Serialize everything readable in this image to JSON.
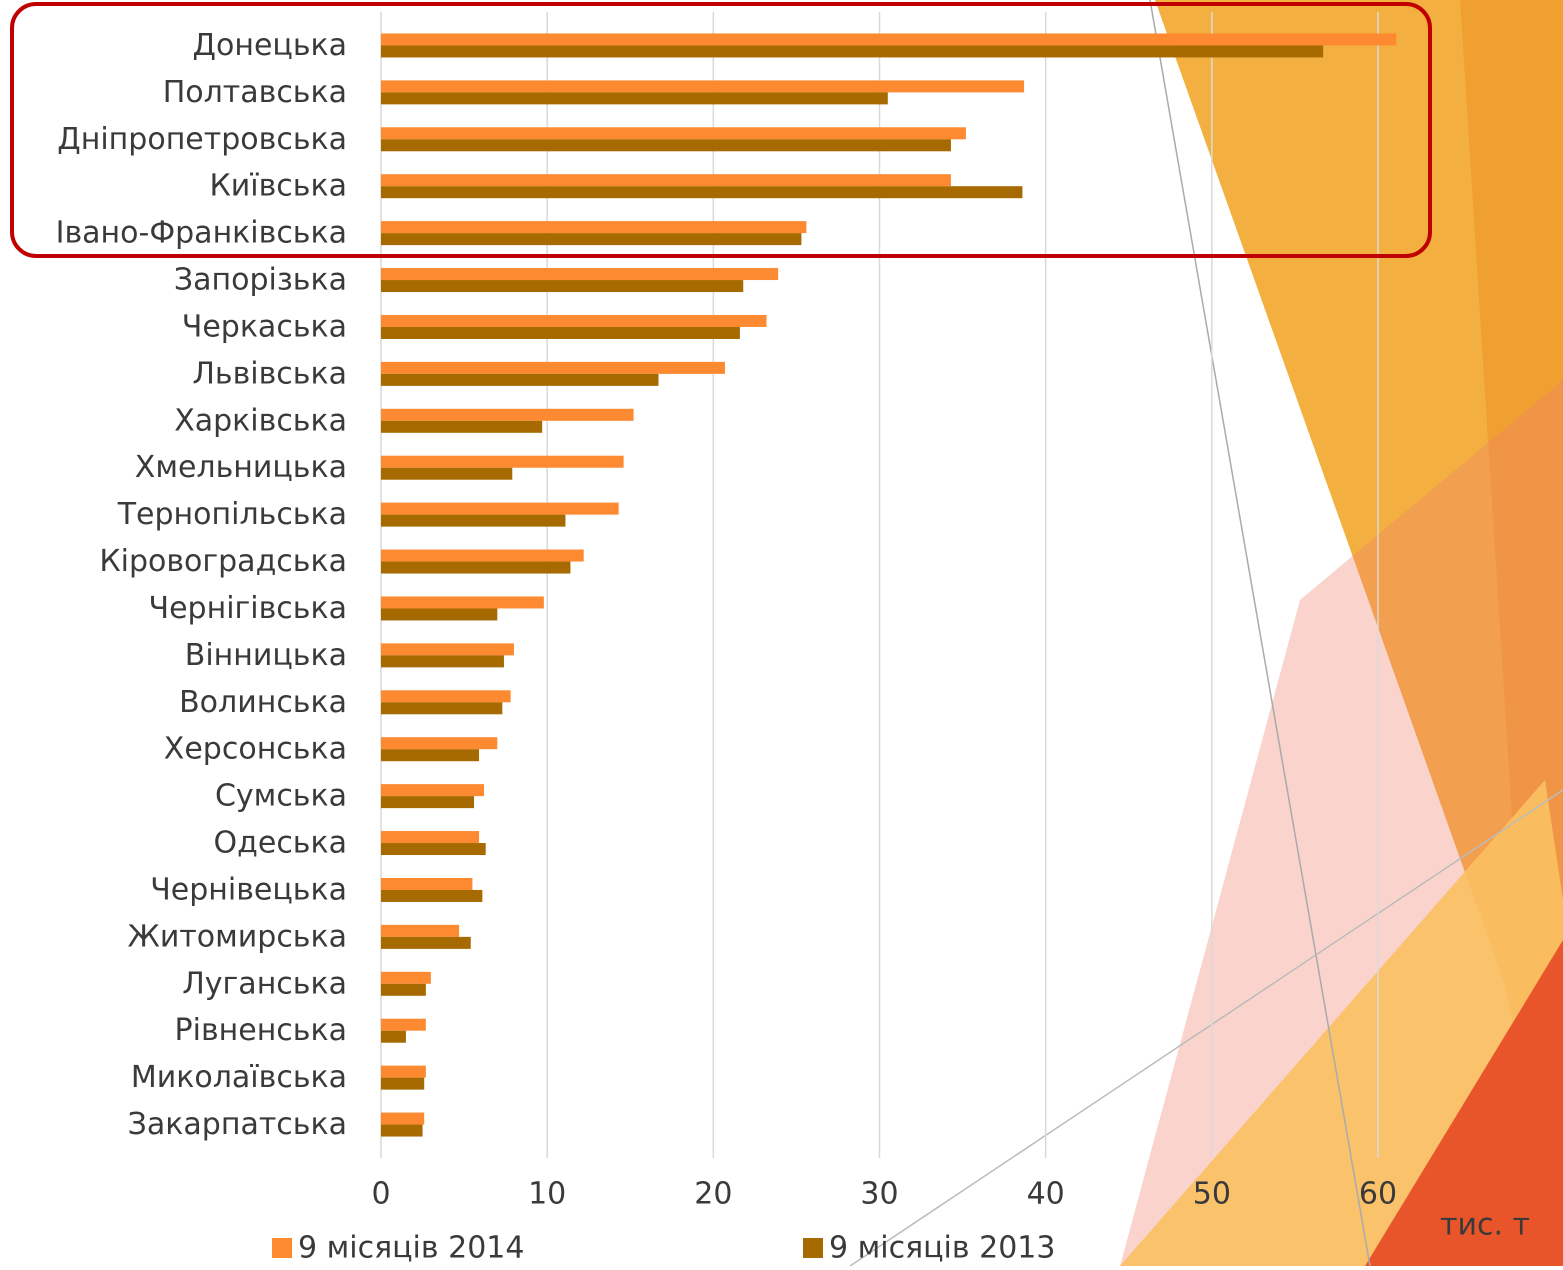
{
  "chart_data": {
    "type": "hbar",
    "categories": [
      "Донецька",
      "Полтавська",
      "Дніпропетровська",
      "Київська",
      "Івано-Франківська",
      "Запорізька",
      "Черкаська",
      "Львівська",
      "Харківська",
      "Хмельницька",
      "Тернопільська",
      "Кіровоградська",
      "Чернігівська",
      "Вінницька",
      "Волинська",
      "Херсонська",
      "Сумська",
      "Одеська",
      "Чернівецька",
      "Житомирська",
      "Луганська",
      "Рівненська",
      "Миколаївська",
      "Закарпатська"
    ],
    "series": [
      {
        "name": "9 місяців 2014",
        "color": "#fd8a30",
        "values": [
          61.1,
          38.7,
          35.2,
          34.3,
          25.6,
          23.9,
          23.2,
          20.7,
          15.2,
          14.6,
          14.3,
          12.2,
          9.8,
          8.0,
          7.8,
          7.0,
          6.2,
          5.9,
          5.5,
          4.7,
          3.0,
          2.7,
          2.7,
          2.6
        ]
      },
      {
        "name": "9 місяців 2013",
        "color": "#a66a00",
        "values": [
          56.7,
          30.5,
          34.3,
          38.6,
          25.3,
          21.8,
          21.6,
          16.7,
          9.7,
          7.9,
          11.1,
          11.4,
          7.0,
          7.4,
          7.3,
          5.9,
          5.6,
          6.3,
          6.1,
          5.4,
          2.7,
          1.5,
          2.6,
          2.5
        ]
      }
    ],
    "xlim": [
      0,
      60
    ],
    "xticks": [
      0,
      10,
      20,
      30,
      40,
      50,
      60
    ],
    "grid": true,
    "x_label": "тис. т",
    "legend": "bottom"
  }
}
